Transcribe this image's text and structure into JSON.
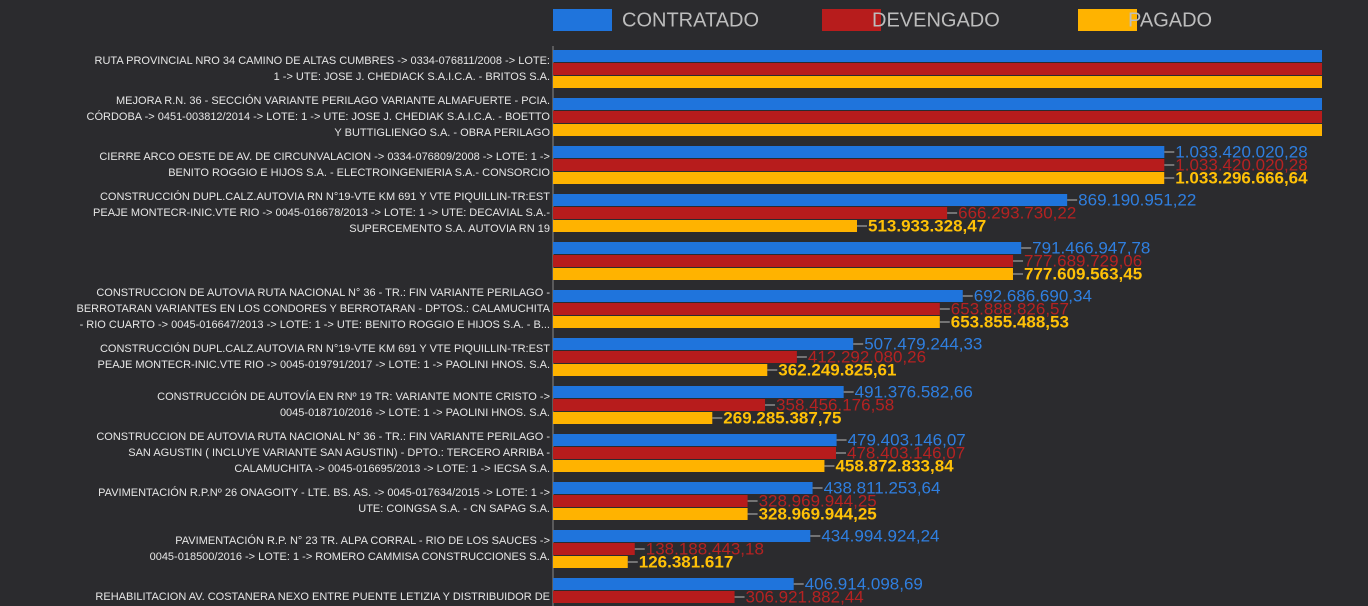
{
  "chart_data": {
    "type": "hbar",
    "categories": [
      [
        "RUTA PROVINCIAL NRO 34 CAMINO DE ALTAS CUMBRES -> 0334-076811/2008 -> LOTE:",
        "1 -> UTE: JOSE J. CHEDIACK S.A.I.C.A. - BRITOS S.A."
      ],
      [
        "MEJORA R.N. 36 - SECCIÓN VARIANTE PERILAGO VARIANTE ALMAFUERTE - PCIA.",
        "CÓRDOBA -> 0451-003812/2014 -> LOTE: 1 -> UTE: JOSE J. CHEDIAK S.A.I.C.A. - BOETTO",
        "Y BUTTIGLIENGO S.A. - OBRA PERILAGO"
      ],
      [
        "CIERRE ARCO OESTE DE AV. DE CIRCUNVALACION -> 0334-076809/2008 -> LOTE: 1 ->",
        "BENITO ROGGIO E HIJOS S.A. - ELECTROINGENIERIA S.A.- CONSORCIO"
      ],
      [
        "CONSTRUCCIÓN DUPL.CALZ.AUTOVIA RN N°19-VTE KM 691 Y VTE PIQUILLIN-TR:EST",
        "PEAJE MONTECR-INIC.VTE RIO -> 0045-016678/2013 -> LOTE: 1 -> UTE: DECAVIAL S.A.-",
        "SUPERCEMENTO S.A. AUTOVIA RN 19"
      ],
      null,
      [
        "CONSTRUCCION DE AUTOVIA RUTA NACIONAL N° 36 - TR.: FIN VARIANTE PERILAGO -",
        "BERROTARAN VARIANTES EN LOS CONDORES Y BERROTARAN - DPTOS.: CALAMUCHITA",
        "- RIO CUARTO -> 0045-016647/2013 -> LOTE: 1 -> UTE: BENITO ROGGIO E HIJOS S.A. - B..."
      ],
      [
        "CONSTRUCCIÓN DUPL.CALZ.AUTOVIA RN N°19-VTE KM 691 Y VTE PIQUILLIN-TR:EST",
        "PEAJE MONTECR-INIC.VTE RIO -> 0045-019791/2017 -> LOTE: 1 -> PAOLINI HNOS. S.A."
      ],
      [
        "CONSTRUCCIÓN DE AUTOVÍA EN RNº 19 TR: VARIANTE MONTE CRISTO ->",
        "0045-018710/2016 -> LOTE: 1 -> PAOLINI HNOS. S.A."
      ],
      [
        "CONSTRUCCION DE AUTOVIA RUTA NACIONAL N° 36 - TR.: FIN VARIANTE PERILAGO -",
        "SAN AGUSTIN ( INCLUYE VARIANTE SAN AGUSTIN) - DPTO.: TERCERO ARRIBA -",
        "CALAMUCHITA -> 0045-016695/2013 -> LOTE: 1 -> IECSA S.A."
      ],
      [
        "PAVIMENTACIÓN R.P.Nº 26 ONAGOITY - LTE. BS. AS. -> 0045-017634/2015 -> LOTE: 1 ->",
        "UTE: COINGSA S.A. - CN SAPAG S.A."
      ],
      [
        "PAVIMENTACIÓN R.P. N° 23 TR. ALPA CORRAL - RIO DE LOS SAUCES ->",
        "0045-018500/2016 -> LOTE: 1 -> ROMERO CAMMISA CONSTRUCCIONES S.A."
      ],
      [
        "REHABILITACION AV. COSTANERA NEXO ENTRE PUENTE LETIZIA Y DISTRIBUIDOR DE"
      ]
    ],
    "series": [
      {
        "name": "CONTRATADO",
        "color": "#1f74dc",
        "label_color": "#2f7fe0",
        "values": [
          1300000000,
          1300000000,
          1033420020.28,
          869190951.22,
          791466947.78,
          692686690.34,
          507479244.33,
          491376582.66,
          479403146.07,
          438811253.64,
          434994924.24,
          406914098.69
        ],
        "value_labels": [
          null,
          null,
          "1.033.420.020,28",
          "869.190.951,22",
          "791.466.947,78",
          "692.686.690,34",
          "507.479.244,33",
          "491.376.582,66",
          "479.403.146,07",
          "438.811.253,64",
          "434.994.924,24",
          "406.914.098,69"
        ]
      },
      {
        "name": "DEVENGADO",
        "color": "#b71c1c",
        "label_color": "#b52222",
        "values": [
          1300000000,
          1300000000,
          1033420020.28,
          666293730.22,
          777689729.06,
          653888826.57,
          412292080.26,
          358456176.58,
          478403146.07,
          328969944.25,
          138188443.18,
          306921882.44
        ],
        "value_labels": [
          null,
          null,
          "1.033.420.020,28",
          "666.293.730,22",
          "777.689.729,06",
          "653.888.826,57",
          "412.292.080,26",
          "358.456.176,58",
          "478.403.146,07",
          "328.969.944,25",
          "138.188.443,18",
          "306.921.882,44"
        ]
      },
      {
        "name": "PAGADO",
        "color": "#ffb300",
        "label_color": "#ffc107",
        "values": [
          1300000000,
          1300000000,
          1033296666.64,
          513933328.47,
          777609563.45,
          653855488.53,
          362249825.61,
          269285387.75,
          458872833.84,
          328969944.25,
          126381617,
          null
        ],
        "value_labels": [
          null,
          null,
          "1.033.296.666,64",
          "513.933.328,47",
          "777.609.563,45",
          "653.855.488,53",
          "362.249.825,61",
          "269.285.387,75",
          "458.872.833,84",
          "328.969.944,25",
          "126.381.617",
          null
        ]
      }
    ],
    "xlim": [
      0,
      1300000000
    ]
  }
}
